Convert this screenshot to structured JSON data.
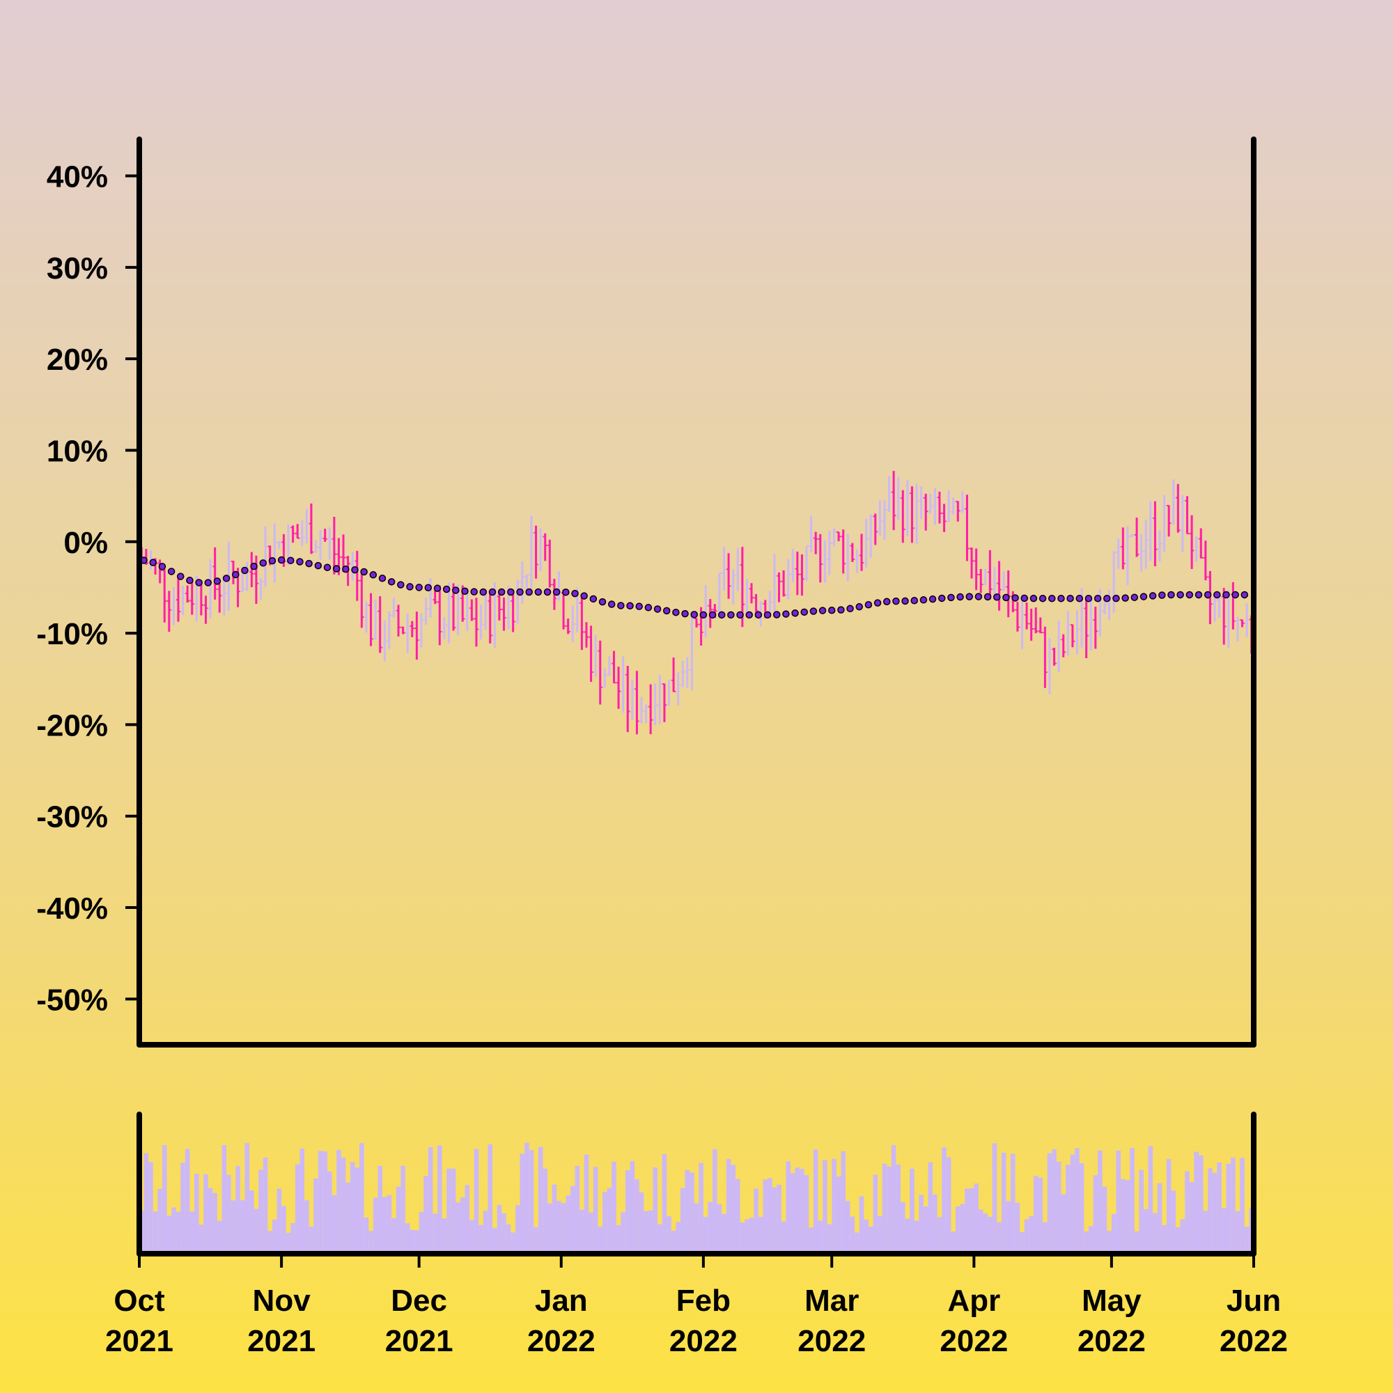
{
  "chart_data": {
    "type": "ohlc",
    "title": "",
    "xlabel": "",
    "ylabel": "",
    "y_ticks": [
      "40%",
      "30%",
      "20%",
      "10%",
      "0%",
      "-10%",
      "-20%",
      "-30%",
      "-40%",
      "-50%"
    ],
    "y_tick_values": [
      40,
      30,
      20,
      10,
      0,
      -10,
      -20,
      -30,
      -40,
      -50
    ],
    "ylim": [
      -55,
      44
    ],
    "x_ticks": [
      {
        "date": "2021-10-01",
        "month": "Oct",
        "year": "2021"
      },
      {
        "date": "2021-11-01",
        "month": "Nov",
        "year": "2021"
      },
      {
        "date": "2021-12-01",
        "month": "Dec",
        "year": "2021"
      },
      {
        "date": "2022-01-01",
        "month": "Jan",
        "year": "2022"
      },
      {
        "date": "2022-02-01",
        "month": "Feb",
        "year": "2022"
      },
      {
        "date": "2022-03-01",
        "month": "Mar",
        "year": "2022"
      },
      {
        "date": "2022-04-01",
        "month": "Apr",
        "year": "2022"
      },
      {
        "date": "2022-05-01",
        "month": "May",
        "year": "2022"
      },
      {
        "date": "2022-06-01",
        "month": "Jun",
        "year": "2022"
      }
    ],
    "xlim": [
      "2021-10-01",
      "2022-06-01"
    ],
    "colors": {
      "up": "#cdb8f6",
      "down": "#ff1fa8",
      "ma_fill": "#7a22d8",
      "ma_edge": "#000000",
      "volume": "#cdb8f6",
      "axes": "#000000"
    },
    "series": [
      {
        "kind": "close",
        "points": [
          [
            "2021-10-02",
            -2
          ],
          [
            "2021-10-09",
            -6
          ],
          [
            "2021-10-16",
            -5
          ],
          [
            "2021-10-23",
            -4
          ],
          [
            "2021-11-01",
            0
          ],
          [
            "2021-11-08",
            1
          ],
          [
            "2021-11-15",
            -2
          ],
          [
            "2021-11-22",
            -10
          ],
          [
            "2021-11-29",
            -9
          ],
          [
            "2021-12-06",
            -8
          ],
          [
            "2021-12-13",
            -9
          ],
          [
            "2021-12-20",
            -7
          ],
          [
            "2021-12-27",
            0
          ],
          [
            "2022-01-03",
            -8
          ],
          [
            "2022-01-10",
            -14
          ],
          [
            "2022-01-17",
            -18
          ],
          [
            "2022-01-24",
            -16
          ],
          [
            "2022-01-31",
            -10
          ],
          [
            "2022-02-07",
            -4
          ],
          [
            "2022-02-14",
            -6
          ],
          [
            "2022-02-21",
            -4
          ],
          [
            "2022-02-28",
            0
          ],
          [
            "2022-03-07",
            -1
          ],
          [
            "2022-03-14",
            4
          ],
          [
            "2022-03-21",
            3
          ],
          [
            "2022-03-28",
            2
          ],
          [
            "2022-04-04",
            -4
          ],
          [
            "2022-04-11",
            -8
          ],
          [
            "2022-04-18",
            -13
          ],
          [
            "2022-04-25",
            -9
          ],
          [
            "2022-05-02",
            -3
          ],
          [
            "2022-05-09",
            1
          ],
          [
            "2022-05-16",
            3
          ],
          [
            "2022-05-23",
            -7
          ],
          [
            "2022-05-31",
            -9
          ]
        ]
      },
      {
        "kind": "moving_average",
        "points": [
          [
            "2021-10-01",
            -2
          ],
          [
            "2021-10-15",
            -4.5
          ],
          [
            "2021-11-01",
            -2
          ],
          [
            "2021-11-15",
            -3
          ],
          [
            "2021-12-01",
            -5
          ],
          [
            "2021-12-15",
            -5.5
          ],
          [
            "2022-01-01",
            -5.5
          ],
          [
            "2022-01-15",
            -7
          ],
          [
            "2022-02-01",
            -8
          ],
          [
            "2022-02-15",
            -8
          ],
          [
            "2022-03-01",
            -7.5
          ],
          [
            "2022-03-15",
            -6.5
          ],
          [
            "2022-04-01",
            -6
          ],
          [
            "2022-04-15",
            -6.2
          ],
          [
            "2022-05-01",
            -6.2
          ],
          [
            "2022-05-15",
            -5.8
          ],
          [
            "2022-06-01",
            -5.8
          ]
        ]
      }
    ],
    "volume_panel": {
      "y_ticks": [],
      "note_values_relative": true
    }
  }
}
